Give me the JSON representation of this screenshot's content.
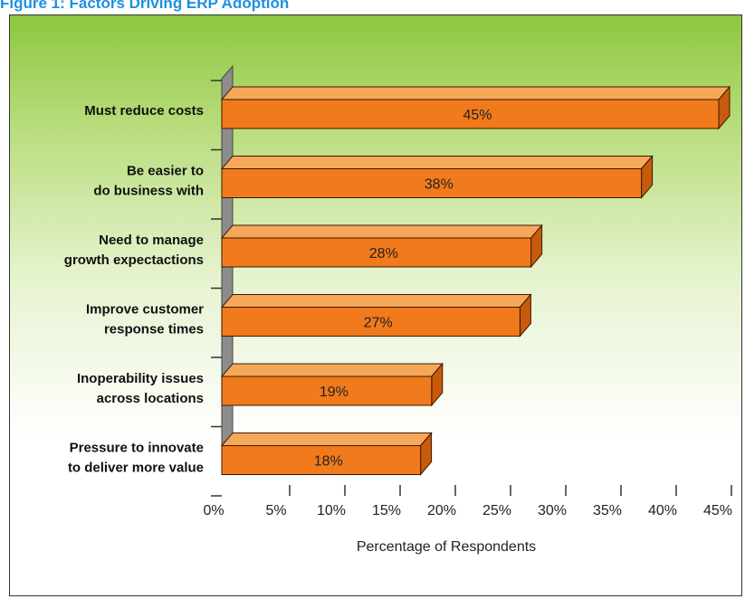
{
  "figure_title": "Figure 1: Factors Driving ERP Adoption",
  "colors": {
    "bar_front": "#f07a1c",
    "bar_top": "#f6a85a",
    "bar_side": "#c85a0c",
    "bar_stroke": "#3a1a00",
    "wall": "#8c8c8c",
    "title": "#1e90e0"
  },
  "chart_data": {
    "type": "bar",
    "orientation": "horizontal",
    "style": "3d",
    "categories": [
      [
        "Must reduce costs"
      ],
      [
        "Be easier to",
        "do business with"
      ],
      [
        "Need to manage",
        "growth expectactions"
      ],
      [
        "Improve customer",
        "response times"
      ],
      [
        "Inoperability issues",
        "across locations"
      ],
      [
        "Pressure to innovate",
        "to deliver more value"
      ]
    ],
    "values": [
      45,
      38,
      28,
      27,
      19,
      18
    ],
    "value_labels": [
      "45%",
      "38%",
      "28%",
      "27%",
      "19%",
      "18%"
    ],
    "xlabel": "Percentage of Respondents",
    "xlim": [
      0,
      45
    ],
    "xticks": [
      0,
      5,
      10,
      15,
      20,
      25,
      30,
      35,
      40,
      45
    ],
    "xtick_labels": [
      "0%",
      "5%",
      "10%",
      "15%",
      "20%",
      "25%",
      "30%",
      "35%",
      "40%",
      "45%"
    ],
    "grid": false,
    "legend": "none"
  }
}
